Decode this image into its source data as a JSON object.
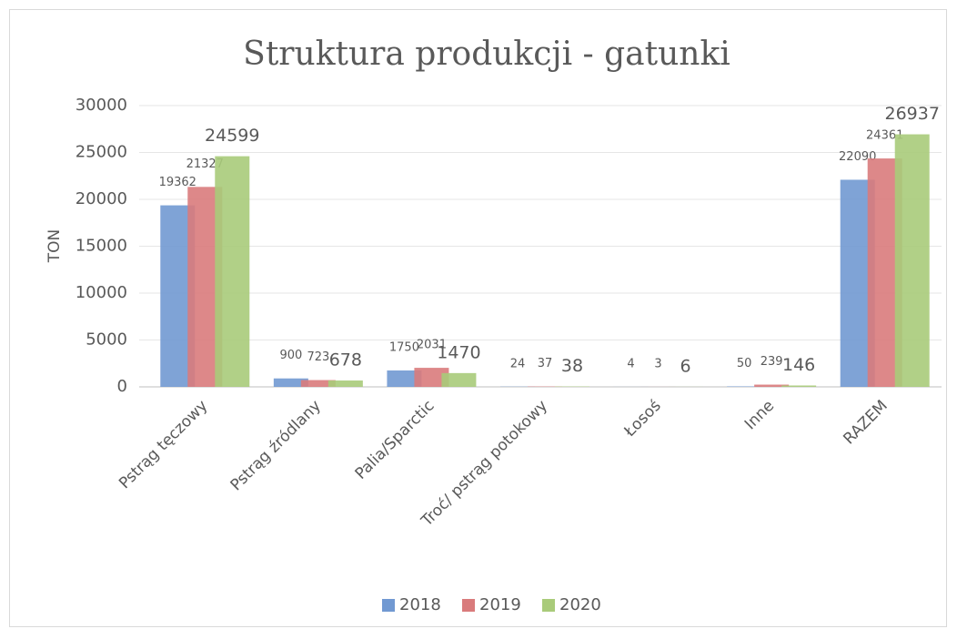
{
  "chart_data": {
    "type": "bar",
    "title": "Struktura produkcji - gatunki",
    "y_label": "TON",
    "categories": [
      "Pstrąg tęczowy",
      "Pstrąg źródlany",
      "Palia/Sparctic",
      "Troć/ pstrąg potokowy",
      "Łosoś",
      "Inne",
      "RAZEM"
    ],
    "series": [
      {
        "name": "2018",
        "color": "#7199d2",
        "values": [
          19362,
          900,
          1750,
          24,
          4,
          50,
          22090
        ]
      },
      {
        "name": "2019",
        "color": "#d97b7c",
        "values": [
          21327,
          723,
          2031,
          37,
          3,
          239,
          24361
        ]
      },
      {
        "name": "2020",
        "color": "#a9cb7a",
        "values": [
          24599,
          678,
          1470,
          38,
          6,
          146,
          26937
        ]
      }
    ],
    "ylim": [
      0,
      30000
    ],
    "yticks": [
      0,
      5000,
      10000,
      15000,
      20000,
      25000,
      30000
    ],
    "grid": true,
    "legend": "bottom"
  }
}
